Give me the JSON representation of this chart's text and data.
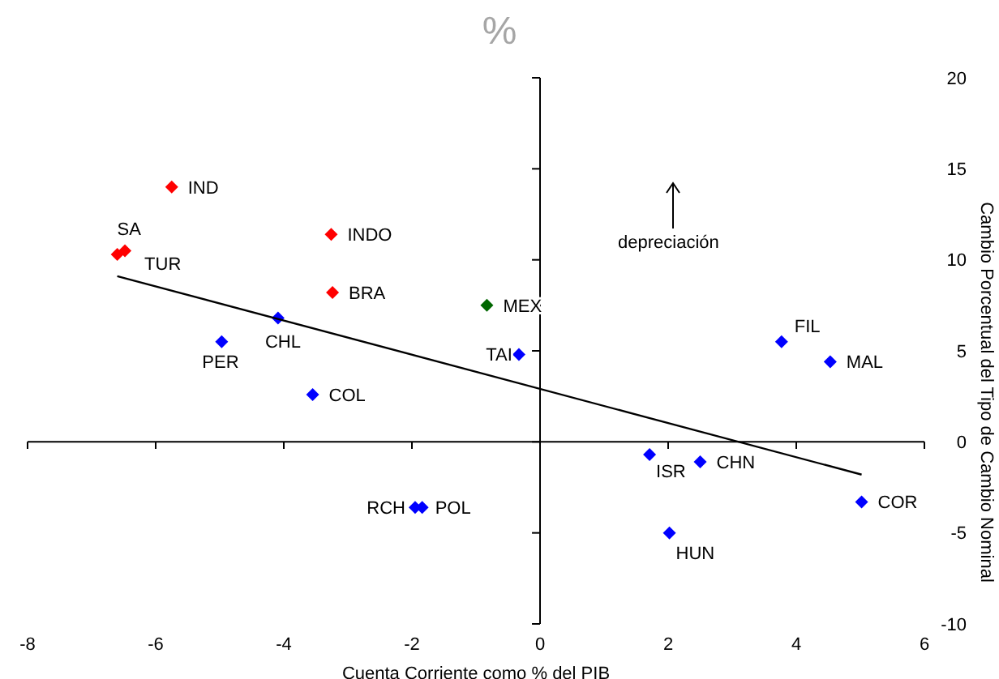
{
  "chart_data": {
    "type": "scatter",
    "title": "%",
    "xlabel": "Cuenta Corriente como % del PIB",
    "ylabel": "Cambio Porcentual del Tipo de Cambio Nominal",
    "xlim": [
      -8,
      6
    ],
    "xticks": [
      -8,
      -6,
      -4,
      -2,
      0,
      2,
      4,
      6
    ],
    "ylim": [
      -10,
      20
    ],
    "yticks": [
      -10,
      -5,
      0,
      5,
      10,
      15,
      20
    ],
    "legend": false,
    "marker": "diamond",
    "series": [
      {
        "color": "#ff0000",
        "x": [
          -5.75,
          -6.6,
          -6.48,
          -3.26,
          -3.24
        ],
        "values": [
          14,
          10.3,
          10.5,
          11.4,
          8.2
        ]
      },
      {
        "color": "#006600",
        "x": [
          -0.83
        ],
        "values": [
          7.5
        ]
      },
      {
        "color": "#0000ff",
        "x": [
          -4.09,
          -4.97,
          -0.33,
          -3.55,
          -1.95,
          -1.84,
          1.71,
          2.5,
          3.77,
          4.53,
          5.02,
          2.02
        ],
        "values": [
          6.8,
          5.5,
          4.8,
          2.6,
          -3.6,
          -3.6,
          -0.7,
          -1.1,
          5.5,
          4.4,
          -3.3,
          -5
        ]
      },
      {
        "type": "line",
        "color": "#000000",
        "marker": "none",
        "x": [
          -6.6,
          5.02
        ],
        "values": [
          9.1,
          -1.8
        ]
      }
    ],
    "annotations": [
      {
        "text": "IND",
        "x": -5.75,
        "y": 14
      },
      {
        "text": "SA",
        "x": -6.6,
        "y": 10.3
      },
      {
        "text": "TUR",
        "x": -6.48,
        "y": 10.5
      },
      {
        "text": "INDO",
        "x": -3.26,
        "y": 11.4
      },
      {
        "text": "BRA",
        "x": -3.24,
        "y": 8.2
      },
      {
        "text": "MEX",
        "x": -0.83,
        "y": 7.5
      },
      {
        "text": "CHL",
        "x": -4.09,
        "y": 6.8
      },
      {
        "text": "PER",
        "x": -4.97,
        "y": 5.5
      },
      {
        "text": "TAI",
        "x": -0.33,
        "y": 4.8
      },
      {
        "text": "COL",
        "x": -3.55,
        "y": 2.6
      },
      {
        "text": "RCH",
        "x": -1.95,
        "y": -3.6
      },
      {
        "text": "POL",
        "x": -1.84,
        "y": -3.6
      },
      {
        "text": "ISR",
        "x": 1.71,
        "y": -0.7
      },
      {
        "text": "CHN",
        "x": 2.5,
        "y": -1.1
      },
      {
        "text": "FIL",
        "x": 3.77,
        "y": 5.5
      },
      {
        "text": "MAL",
        "x": 4.53,
        "y": 4.4
      },
      {
        "text": "COR",
        "x": 5.02,
        "y": -3.3
      },
      {
        "text": "HUN",
        "x": 2.02,
        "y": -5
      },
      "depreciación"
    ]
  }
}
